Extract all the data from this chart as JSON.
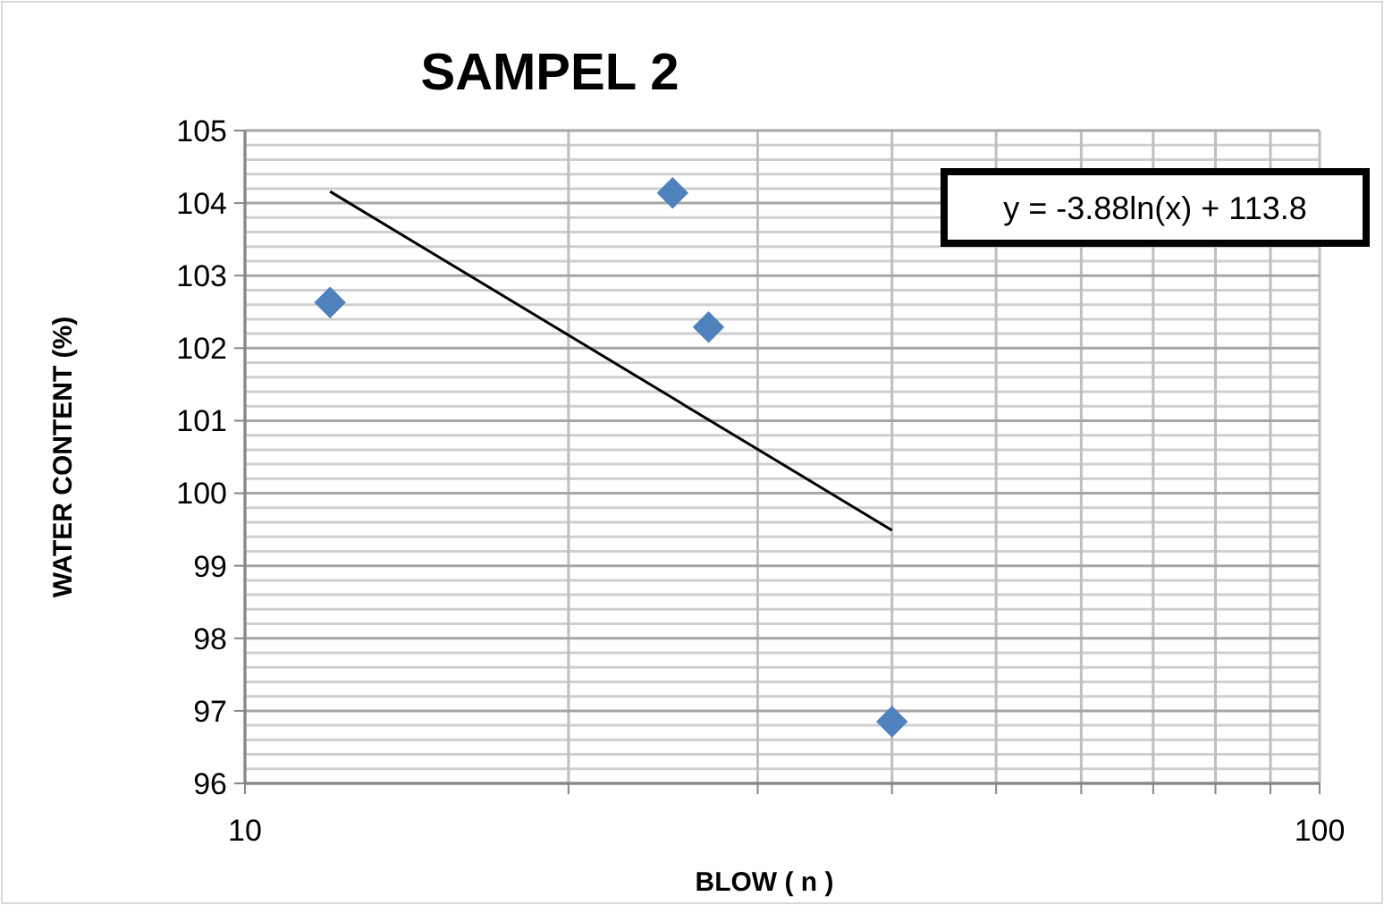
{
  "chart_data": {
    "type": "scatter",
    "title": "SAMPEL 2",
    "xlabel": "BLOW ( n )",
    "ylabel": "WATER CONTENT (%)",
    "log": "x",
    "grid": true,
    "marker": "diamond",
    "xlim": [
      10,
      100
    ],
    "xticks": [
      10,
      {
        "value": 20,
        "label": null
      },
      {
        "value": 30,
        "label": null
      },
      {
        "value": 40,
        "label": null
      },
      {
        "value": 50,
        "label": null
      },
      {
        "value": 60,
        "label": null
      },
      {
        "value": 70,
        "label": null
      },
      {
        "value": 80,
        "label": null
      },
      {
        "value": 90,
        "label": null
      },
      100
    ],
    "ylim": [
      96,
      105
    ],
    "yticks": [
      96,
      97,
      98,
      99,
      100,
      101,
      102,
      103,
      104,
      105
    ],
    "annotations": [
      "y = -3.88ln(x) + 113.8"
    ],
    "series": [
      {
        "color": "#4f81bd",
        "x": [
          12,
          25,
          27,
          40
        ],
        "values": [
          102.63,
          104.14,
          102.29,
          96.85
        ]
      },
      {
        "type": "line",
        "color": "#000000",
        "x": [
          12,
          40
        ],
        "values": [
          104.16,
          99.49
        ],
        "marker": "none"
      }
    ]
  }
}
